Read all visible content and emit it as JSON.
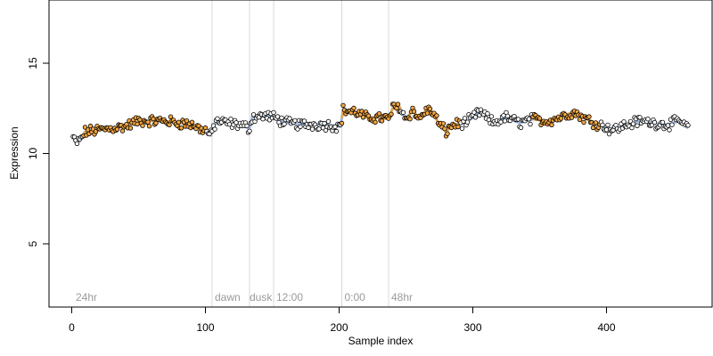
{
  "chart_data": {
    "type": "scatter",
    "title": "",
    "xlabel": "Sample index",
    "ylabel": "Expression",
    "xlim": [
      -17,
      479
    ],
    "ylim": [
      1.5,
      18.5
    ],
    "x_ticks": [
      0,
      100,
      200,
      300,
      400
    ],
    "y_ticks": [
      5,
      10,
      15
    ],
    "grid": false,
    "legend": "none",
    "colors": {
      "point_fill_dark": "#ffffff",
      "point_fill_light": "#f5a742",
      "point_stroke": "#000000",
      "smooth_dark": "#9db7dc",
      "smooth_light": "#d9a55c",
      "divider": "#d9d9d9",
      "period_label": "#9a9a9a"
    },
    "period_dividers": [
      105,
      133,
      151,
      202,
      237
    ],
    "period_labels": [
      {
        "x": 3,
        "text": "24hr"
      },
      {
        "x": 107,
        "text": "dawn"
      },
      {
        "x": 133,
        "text": "dusk"
      },
      {
        "x": 153,
        "text": "12:00"
      },
      {
        "x": 204,
        "text": "0:00"
      },
      {
        "x": 239,
        "text": "48hr"
      }
    ],
    "light_ranges": [
      [
        9,
        100
      ],
      [
        202,
        245
      ],
      [
        250,
        290
      ],
      [
        345,
        395
      ]
    ],
    "keypoints": [
      [
        1,
        10.9
      ],
      [
        3,
        10.6
      ],
      [
        6,
        10.7
      ],
      [
        10,
        11.2
      ],
      [
        20,
        11.3
      ],
      [
        30,
        11.4
      ],
      [
        40,
        11.5
      ],
      [
        50,
        11.8
      ],
      [
        60,
        11.8
      ],
      [
        70,
        11.8
      ],
      [
        80,
        11.7
      ],
      [
        90,
        11.6
      ],
      [
        95,
        11.4
      ],
      [
        100,
        11.3
      ],
      [
        104,
        11.0
      ],
      [
        108,
        11.8
      ],
      [
        115,
        11.7
      ],
      [
        125,
        11.6
      ],
      [
        133,
        11.4
      ],
      [
        135,
        12.0
      ],
      [
        145,
        12.1
      ],
      [
        151,
        12.0
      ],
      [
        160,
        11.7
      ],
      [
        170,
        11.6
      ],
      [
        180,
        11.6
      ],
      [
        190,
        11.6
      ],
      [
        201,
        11.5
      ],
      [
        203,
        12.4
      ],
      [
        212,
        12.3
      ],
      [
        220,
        12.0
      ],
      [
        230,
        12.0
      ],
      [
        237,
        11.9
      ],
      [
        240,
        12.5
      ],
      [
        245,
        12.6
      ],
      [
        250,
        11.9
      ],
      [
        255,
        12.4
      ],
      [
        260,
        11.9
      ],
      [
        265,
        12.4
      ],
      [
        270,
        12.3
      ],
      [
        275,
        11.6
      ],
      [
        280,
        11.2
      ],
      [
        285,
        11.6
      ],
      [
        295,
        11.7
      ],
      [
        305,
        12.3
      ],
      [
        315,
        11.7
      ],
      [
        325,
        12.0
      ],
      [
        335,
        11.7
      ],
      [
        345,
        11.9
      ],
      [
        355,
        11.8
      ],
      [
        365,
        12.0
      ],
      [
        375,
        12.3
      ],
      [
        385,
        11.9
      ],
      [
        395,
        11.6
      ],
      [
        405,
        11.3
      ],
      [
        415,
        11.6
      ],
      [
        425,
        11.8
      ],
      [
        435,
        11.7
      ],
      [
        445,
        11.6
      ],
      [
        455,
        11.8
      ],
      [
        461,
        11.4
      ]
    ]
  }
}
